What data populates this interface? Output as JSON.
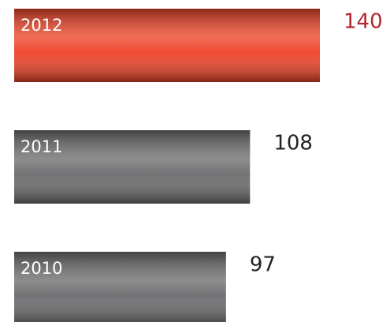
{
  "chart_data": {
    "type": "hbar",
    "categories": [
      "2012",
      "2011",
      "2010"
    ],
    "values": [
      140,
      108,
      97
    ],
    "colors": [
      "#ee4226",
      "#6c6c6e",
      "#6c6c6e"
    ],
    "label_colors": [
      "#b3262e",
      "#222222",
      "#222222"
    ]
  }
}
